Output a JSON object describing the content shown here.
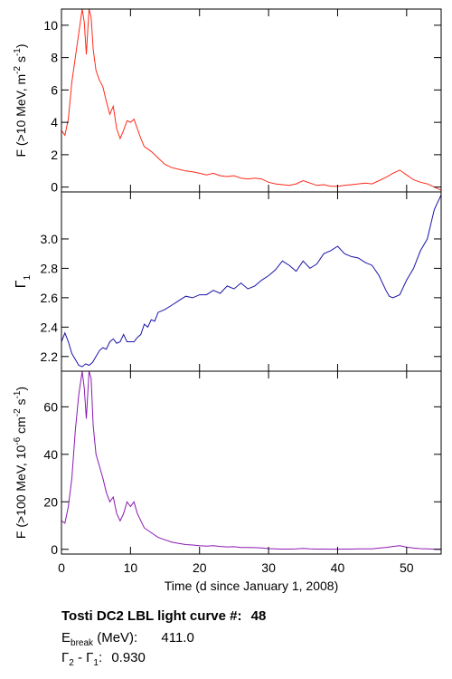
{
  "chart_data": {
    "type": "line",
    "x_axis": {
      "label": "Time (d since January 1, 2008)",
      "range": [
        0,
        55
      ],
      "ticks": [
        0,
        10,
        20,
        30,
        40,
        50
      ]
    },
    "panels": [
      {
        "id": "flux_gt10mev",
        "ylabel_main": "F (>10 MeV, m",
        "ylabel_exp1": "-2",
        "ylabel_mid": " s",
        "ylabel_exp2": "-1",
        "ylabel_end": ")",
        "ylim": [
          -0.3,
          11
        ],
        "yticks": [
          0,
          2,
          4,
          6,
          8,
          10
        ],
        "color": "#ff2a1a",
        "points": [
          [
            0,
            3.5
          ],
          [
            0.5,
            3.2
          ],
          [
            1,
            4.2
          ],
          [
            1.5,
            6.5
          ],
          [
            2,
            8
          ],
          [
            2.5,
            9.5
          ],
          [
            3,
            11
          ],
          [
            3.3,
            10.2
          ],
          [
            3.6,
            8.2
          ],
          [
            4,
            11
          ],
          [
            4.3,
            10.5
          ],
          [
            4.6,
            8.5
          ],
          [
            5,
            7.2
          ],
          [
            5.5,
            6.6
          ],
          [
            6,
            6.2
          ],
          [
            6.5,
            5.3
          ],
          [
            7,
            4.5
          ],
          [
            7.5,
            5.0
          ],
          [
            8,
            3.6
          ],
          [
            8.5,
            3.0
          ],
          [
            9,
            3.5
          ],
          [
            9.5,
            4.1
          ],
          [
            10,
            4.0
          ],
          [
            10.5,
            4.2
          ],
          [
            11,
            3.6
          ],
          [
            11.5,
            3.0
          ],
          [
            12,
            2.5
          ],
          [
            13,
            2.2
          ],
          [
            14,
            1.8
          ],
          [
            15,
            1.4
          ],
          [
            16,
            1.2
          ],
          [
            17,
            1.1
          ],
          [
            18,
            1.0
          ],
          [
            19,
            0.95
          ],
          [
            20,
            0.85
          ],
          [
            21,
            0.75
          ],
          [
            22,
            0.85
          ],
          [
            23,
            0.7
          ],
          [
            24,
            0.65
          ],
          [
            25,
            0.7
          ],
          [
            26,
            0.55
          ],
          [
            27,
            0.5
          ],
          [
            28,
            0.55
          ],
          [
            29,
            0.5
          ],
          [
            30,
            0.3
          ],
          [
            31,
            0.2
          ],
          [
            32,
            0.15
          ],
          [
            33,
            0.1
          ],
          [
            34,
            0.2
          ],
          [
            35,
            0.4
          ],
          [
            36,
            0.25
          ],
          [
            37,
            0.1
          ],
          [
            38,
            0.15
          ],
          [
            39,
            0.05
          ],
          [
            40,
            0.05
          ],
          [
            41,
            0.1
          ],
          [
            42,
            0.15
          ],
          [
            43,
            0.2
          ],
          [
            44,
            0.25
          ],
          [
            45,
            0.2
          ],
          [
            46,
            0.4
          ],
          [
            47,
            0.6
          ],
          [
            48,
            0.85
          ],
          [
            49,
            1.05
          ],
          [
            50,
            0.75
          ],
          [
            51,
            0.45
          ],
          [
            52,
            0.3
          ],
          [
            53,
            0.2
          ],
          [
            54,
            0.0
          ],
          [
            55,
            -0.2
          ]
        ]
      },
      {
        "id": "gamma1",
        "ylabel_main": "Γ",
        "ylabel_sub": "1",
        "ylim": [
          2.1,
          3.32
        ],
        "yticks": [
          2.2,
          2.4,
          2.6,
          2.8,
          3.0
        ],
        "ytick_labels": [
          "2.2",
          "2.4",
          "2.6",
          "2.8",
          "3.0"
        ],
        "color": "#1a14a8",
        "points": [
          [
            0,
            2.3
          ],
          [
            0.5,
            2.36
          ],
          [
            1,
            2.3
          ],
          [
            1.5,
            2.22
          ],
          [
            2,
            2.18
          ],
          [
            2.5,
            2.14
          ],
          [
            3,
            2.13
          ],
          [
            3.5,
            2.15
          ],
          [
            4,
            2.14
          ],
          [
            4.5,
            2.16
          ],
          [
            5,
            2.2
          ],
          [
            5.5,
            2.24
          ],
          [
            6,
            2.26
          ],
          [
            6.5,
            2.25
          ],
          [
            7,
            2.3
          ],
          [
            7.5,
            2.32
          ],
          [
            8,
            2.29
          ],
          [
            8.5,
            2.3
          ],
          [
            9,
            2.35
          ],
          [
            9.5,
            2.3
          ],
          [
            10,
            2.3
          ],
          [
            10.5,
            2.3
          ],
          [
            11,
            2.33
          ],
          [
            11.5,
            2.35
          ],
          [
            12,
            2.42
          ],
          [
            12.5,
            2.4
          ],
          [
            13,
            2.45
          ],
          [
            13.5,
            2.44
          ],
          [
            14,
            2.5
          ],
          [
            15,
            2.52
          ],
          [
            16,
            2.55
          ],
          [
            17,
            2.58
          ],
          [
            18,
            2.61
          ],
          [
            19,
            2.6
          ],
          [
            20,
            2.62
          ],
          [
            21,
            2.62
          ],
          [
            22,
            2.65
          ],
          [
            23,
            2.63
          ],
          [
            24,
            2.68
          ],
          [
            25,
            2.66
          ],
          [
            26,
            2.7
          ],
          [
            27,
            2.66
          ],
          [
            28,
            2.68
          ],
          [
            29,
            2.72
          ],
          [
            30,
            2.75
          ],
          [
            31,
            2.79
          ],
          [
            32,
            2.85
          ],
          [
            33,
            2.82
          ],
          [
            34,
            2.78
          ],
          [
            35,
            2.85
          ],
          [
            36,
            2.8
          ],
          [
            37,
            2.83
          ],
          [
            38,
            2.9
          ],
          [
            39,
            2.92
          ],
          [
            40,
            2.95
          ],
          [
            41,
            2.9
          ],
          [
            42,
            2.88
          ],
          [
            43,
            2.87
          ],
          [
            44,
            2.84
          ],
          [
            45,
            2.82
          ],
          [
            46,
            2.75
          ],
          [
            47,
            2.65
          ],
          [
            47.5,
            2.61
          ],
          [
            48,
            2.6
          ],
          [
            49,
            2.62
          ],
          [
            50,
            2.72
          ],
          [
            51,
            2.8
          ],
          [
            52,
            2.92
          ],
          [
            53,
            3.0
          ],
          [
            54,
            3.2
          ],
          [
            55,
            3.3
          ]
        ]
      },
      {
        "id": "flux_gt100mev",
        "ylabel_main": "F (>100 MeV, 10",
        "ylabel_exp1": "-6",
        "ylabel_mid": " cm",
        "ylabel_exp2": "-2",
        "ylabel_mid2": " s",
        "ylabel_exp3": "-1",
        "ylabel_end": ")",
        "ylim": [
          -2,
          75
        ],
        "yticks": [
          0,
          20,
          40,
          60
        ],
        "color": "#8a1ab2",
        "points": [
          [
            0,
            12
          ],
          [
            0.5,
            11
          ],
          [
            1,
            18
          ],
          [
            1.5,
            30
          ],
          [
            2,
            50
          ],
          [
            2.5,
            65
          ],
          [
            3,
            75
          ],
          [
            3.3,
            68
          ],
          [
            3.6,
            55
          ],
          [
            4,
            75
          ],
          [
            4.3,
            72
          ],
          [
            4.6,
            52
          ],
          [
            5,
            40
          ],
          [
            5.5,
            35
          ],
          [
            6,
            30
          ],
          [
            6.5,
            24
          ],
          [
            7,
            20
          ],
          [
            7.5,
            22
          ],
          [
            8,
            15
          ],
          [
            8.5,
            12
          ],
          [
            9,
            15
          ],
          [
            9.5,
            20
          ],
          [
            10,
            18
          ],
          [
            10.5,
            20
          ],
          [
            11,
            15
          ],
          [
            11.5,
            12
          ],
          [
            12,
            9
          ],
          [
            13,
            7
          ],
          [
            14,
            5
          ],
          [
            15,
            4
          ],
          [
            16,
            3
          ],
          [
            17,
            2.5
          ],
          [
            18,
            2
          ],
          [
            19,
            1.8
          ],
          [
            20,
            1.5
          ],
          [
            21,
            1.3
          ],
          [
            22,
            1.5
          ],
          [
            23,
            1.2
          ],
          [
            24,
            1
          ],
          [
            25,
            1.1
          ],
          [
            26,
            0.8
          ],
          [
            27,
            0.8
          ],
          [
            28,
            0.7
          ],
          [
            29,
            0.6
          ],
          [
            30,
            0.3
          ],
          [
            31,
            0.2
          ],
          [
            32,
            0.1
          ],
          [
            33,
            0.1
          ],
          [
            34,
            0.2
          ],
          [
            35,
            0.4
          ],
          [
            36,
            0.2
          ],
          [
            37,
            0.1
          ],
          [
            38,
            0.1
          ],
          [
            39,
            0.05
          ],
          [
            40,
            0.05
          ],
          [
            41,
            0.1
          ],
          [
            42,
            0.1
          ],
          [
            43,
            0.2
          ],
          [
            44,
            0.2
          ],
          [
            45,
            0.2
          ],
          [
            46,
            0.5
          ],
          [
            47,
            0.8
          ],
          [
            48,
            1.2
          ],
          [
            49,
            1.5
          ],
          [
            50,
            0.9
          ],
          [
            51,
            0.5
          ],
          [
            52,
            0.3
          ],
          [
            53,
            0.2
          ],
          [
            54,
            0.1
          ],
          [
            55,
            0
          ]
        ]
      }
    ]
  },
  "caption": {
    "line1_text": "Tosti DC2 LBL light curve #:",
    "line1_value": "48",
    "line2_label": "E",
    "line2_sub": "break",
    "line2_unit": " (MeV):",
    "line2_value": "411.0",
    "line3_label_a": "Γ",
    "line3_sub_a": "2",
    "line3_mid": " - Γ",
    "line3_sub_b": "1",
    "line3_colon": ":",
    "line3_value": "0.930"
  }
}
